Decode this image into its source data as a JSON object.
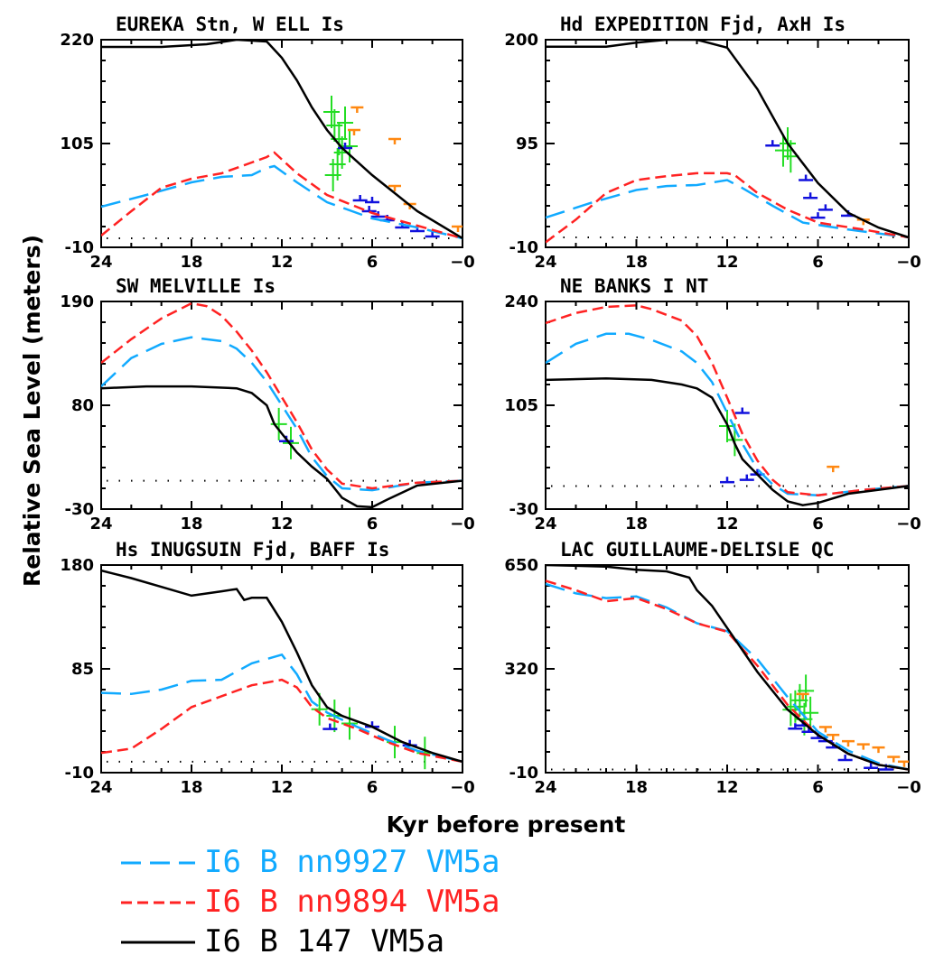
{
  "legend": [
    {
      "label": "I6 B nn9927 VM5a",
      "color": "#11aaff",
      "dash": "long"
    },
    {
      "label": "I6 B nn9894 VM5a",
      "color": "#ff2222",
      "dash": "short"
    },
    {
      "label": "I6 B 147 VM5a",
      "color": "#000000",
      "dash": "solid"
    }
  ],
  "marker_colors": {
    "green": "#22dd22",
    "blue": "#1111dd",
    "orange": "#ff8811"
  },
  "chart_data": [
    {
      "type": "line",
      "title": "EUREKA Stn, W ELL Is",
      "xlabel": "Kyr before present",
      "ylabel": "Relative Sea Level (meters)",
      "xlim": [
        24,
        0
      ],
      "ylim": [
        -10,
        220
      ],
      "xticks": [
        "24",
        "18",
        "12",
        "6",
        "−0"
      ],
      "yticks": [
        "-10",
        "105",
        "220"
      ],
      "series": [
        {
          "name": "I6 B nn9927 VM5a",
          "x": [
            24,
            21,
            18,
            16,
            14,
            13,
            12.5,
            11,
            9,
            6,
            3,
            0
          ],
          "y": [
            35,
            48,
            62,
            68,
            70,
            78,
            80,
            62,
            40,
            22,
            12,
            0
          ]
        },
        {
          "name": "I6 B nn9894 VM5a",
          "x": [
            24,
            22,
            20,
            18,
            16,
            14,
            13,
            12.5,
            11,
            9,
            6,
            3,
            0
          ],
          "y": [
            3,
            30,
            56,
            66,
            72,
            84,
            90,
            95,
            72,
            48,
            28,
            14,
            0
          ]
        },
        {
          "name": "I6 B 147 VM5a",
          "x": [
            24,
            20,
            17,
            15,
            13,
            12,
            11,
            10,
            9,
            8,
            6,
            3,
            0
          ],
          "y": [
            212,
            212,
            215,
            220,
            218,
            200,
            175,
            145,
            120,
            100,
            70,
            30,
            0
          ]
        }
      ],
      "observations": [
        {
          "kind": "green",
          "x": 8.7,
          "y": 140
        },
        {
          "kind": "green",
          "x": 8.5,
          "y": 125
        },
        {
          "kind": "green",
          "x": 8.2,
          "y": 110
        },
        {
          "kind": "green",
          "x": 8.0,
          "y": 95
        },
        {
          "kind": "green",
          "x": 8.6,
          "y": 70
        },
        {
          "kind": "green",
          "x": 7.8,
          "y": 128
        },
        {
          "kind": "green",
          "x": 7.5,
          "y": 102
        },
        {
          "kind": "green",
          "x": 8.3,
          "y": 82
        },
        {
          "kind": "blue",
          "x": 7.8,
          "y": 100
        },
        {
          "kind": "blue",
          "x": 6.8,
          "y": 42
        },
        {
          "kind": "blue",
          "x": 6.0,
          "y": 40
        },
        {
          "kind": "blue",
          "x": 6.2,
          "y": 30
        },
        {
          "kind": "blue",
          "x": 5.6,
          "y": 24
        },
        {
          "kind": "blue",
          "x": 5.0,
          "y": 20
        },
        {
          "kind": "blue",
          "x": 4.0,
          "y": 12
        },
        {
          "kind": "blue",
          "x": 3.0,
          "y": 8
        },
        {
          "kind": "blue",
          "x": 2.0,
          "y": 2
        },
        {
          "kind": "orange",
          "x": 7.0,
          "y": 145
        },
        {
          "kind": "orange",
          "x": 7.2,
          "y": 120
        },
        {
          "kind": "orange",
          "x": 4.5,
          "y": 110
        },
        {
          "kind": "orange",
          "x": 4.5,
          "y": 58
        },
        {
          "kind": "orange",
          "x": 3.5,
          "y": 38
        },
        {
          "kind": "orange",
          "x": 0.3,
          "y": 13
        }
      ]
    },
    {
      "type": "line",
      "title": "Hd EXPEDITION Fjd, AxH Is",
      "xlabel": "Kyr before present",
      "ylabel": "Relative Sea Level (meters)",
      "xlim": [
        24,
        0
      ],
      "ylim": [
        -10,
        200
      ],
      "xticks": [
        "24",
        "18",
        "12",
        "6",
        "−0"
      ],
      "yticks": [
        "-10",
        "95",
        "200"
      ],
      "series": [
        {
          "name": "I6 B nn9927 VM5a",
          "x": [
            24,
            21,
            18,
            16,
            14,
            12,
            11,
            9,
            7,
            4,
            0
          ],
          "y": [
            20,
            35,
            48,
            52,
            53,
            58,
            50,
            32,
            15,
            8,
            0
          ]
        },
        {
          "name": "I6 B nn9894 VM5a",
          "x": [
            24,
            22,
            20,
            18,
            16,
            14,
            12,
            11.5,
            10,
            8,
            6,
            3,
            0
          ],
          "y": [
            -5,
            18,
            45,
            58,
            62,
            65,
            65,
            63,
            45,
            28,
            15,
            8,
            0
          ]
        },
        {
          "name": "I6 B 147 VM5a",
          "x": [
            24,
            20,
            18,
            16,
            14,
            12,
            10,
            8,
            6,
            4,
            2,
            0
          ],
          "y": [
            193,
            193,
            197,
            200,
            200,
            192,
            150,
            95,
            55,
            25,
            10,
            0
          ]
        }
      ],
      "observations": [
        {
          "kind": "green",
          "x": 8.0,
          "y": 95
        },
        {
          "kind": "green",
          "x": 8.3,
          "y": 88
        },
        {
          "kind": "green",
          "x": 7.8,
          "y": 82
        },
        {
          "kind": "blue",
          "x": 9.0,
          "y": 93
        },
        {
          "kind": "blue",
          "x": 6.8,
          "y": 58
        },
        {
          "kind": "blue",
          "x": 6.5,
          "y": 40
        },
        {
          "kind": "blue",
          "x": 5.5,
          "y": 28
        },
        {
          "kind": "blue",
          "x": 4.0,
          "y": 22
        },
        {
          "kind": "blue",
          "x": 6.0,
          "y": 20
        },
        {
          "kind": "orange",
          "x": 3.0,
          "y": 18
        }
      ]
    },
    {
      "type": "line",
      "title": "SW MELVILLE Is",
      "xlabel": "Kyr before present",
      "ylabel": "Relative Sea Level (meters)",
      "xlim": [
        24,
        0
      ],
      "ylim": [
        -30,
        190
      ],
      "xticks": [
        "24",
        "18",
        "12",
        "6",
        "−0"
      ],
      "yticks": [
        "-30",
        "80",
        "190"
      ],
      "series": [
        {
          "name": "I6 B nn9927 VM5a",
          "x": [
            24,
            22,
            20,
            18,
            16,
            15,
            14,
            13,
            11,
            10,
            9,
            8,
            6,
            3,
            0
          ],
          "y": [
            100,
            130,
            145,
            152,
            148,
            140,
            125,
            105,
            55,
            25,
            5,
            -8,
            -10,
            -2,
            0
          ]
        },
        {
          "name": "I6 B nn9894 VM5a",
          "x": [
            24,
            22,
            20,
            18,
            17,
            16,
            15,
            14,
            13,
            11,
            10,
            9,
            8,
            6,
            3,
            0
          ],
          "y": [
            125,
            150,
            172,
            188,
            185,
            175,
            158,
            138,
            115,
            62,
            33,
            12,
            -3,
            -8,
            -2,
            0
          ]
        },
        {
          "name": "I6 B 147 VM5a",
          "x": [
            24,
            21,
            18,
            15,
            14,
            13,
            12.5,
            12,
            11,
            10,
            9,
            8,
            7,
            6,
            5,
            3,
            0
          ],
          "y": [
            98,
            100,
            100,
            98,
            93,
            80,
            60,
            50,
            30,
            15,
            2,
            -18,
            -27,
            -28,
            -20,
            -5,
            0
          ]
        }
      ],
      "observations": [
        {
          "kind": "green",
          "x": 12.2,
          "y": 60
        },
        {
          "kind": "green",
          "x": 11.4,
          "y": 40
        },
        {
          "kind": "blue",
          "x": 11.7,
          "y": 42
        }
      ],
      "zero_line": 0
    },
    {
      "type": "line",
      "title": "NE BANKS I NT",
      "xlabel": "Kyr before present",
      "ylabel": "Relative Sea Level (meters)",
      "xlim": [
        24,
        0
      ],
      "ylim": [
        -30,
        240
      ],
      "xticks": [
        "24",
        "18",
        "12",
        "6",
        "−0"
      ],
      "yticks": [
        "-30",
        "105",
        "240"
      ],
      "series": [
        {
          "name": "I6 B nn9927 VM5a",
          "x": [
            24,
            22,
            20,
            18.5,
            17,
            15,
            14,
            13,
            12,
            11,
            10,
            9,
            8,
            6,
            3,
            0
          ],
          "y": [
            160,
            185,
            198,
            198,
            190,
            175,
            160,
            135,
            95,
            55,
            22,
            2,
            -10,
            -12,
            -5,
            0
          ]
        },
        {
          "name": "I6 B nn9894 VM5a",
          "x": [
            24,
            22,
            20,
            18,
            17,
            15,
            14,
            13,
            12,
            11,
            10,
            9,
            8,
            6,
            3,
            0
          ],
          "y": [
            212,
            225,
            233,
            235,
            230,
            215,
            195,
            160,
            115,
            68,
            33,
            8,
            -8,
            -12,
            -5,
            0
          ]
        },
        {
          "name": "I6 B 147 VM5a",
          "x": [
            24,
            20,
            17,
            15,
            14,
            13,
            12,
            11.5,
            11,
            10,
            9,
            8,
            7,
            6,
            4,
            0
          ],
          "y": [
            138,
            140,
            138,
            132,
            127,
            115,
            80,
            55,
            35,
            15,
            -5,
            -20,
            -25,
            -22,
            -10,
            0
          ]
        }
      ],
      "observations": [
        {
          "kind": "green",
          "x": 12.0,
          "y": 78
        },
        {
          "kind": "green",
          "x": 11.5,
          "y": 60
        },
        {
          "kind": "blue",
          "x": 11.0,
          "y": 95
        },
        {
          "kind": "blue",
          "x": 12.0,
          "y": 5
        },
        {
          "kind": "blue",
          "x": 10.7,
          "y": 8
        },
        {
          "kind": "blue",
          "x": 10.0,
          "y": 15
        },
        {
          "kind": "orange",
          "x": 5.0,
          "y": 25
        }
      ],
      "zero_line": 0
    },
    {
      "type": "line",
      "title": "Hs INUGSUIN Fjd, BAFF Is",
      "xlabel": "Kyr before present",
      "ylabel": "Relative Sea Level (meters)",
      "xlim": [
        24,
        0
      ],
      "ylim": [
        -10,
        180
      ],
      "xticks": [
        "24",
        "18",
        "12",
        "6",
        "−0"
      ],
      "yticks": [
        "-10",
        "85",
        "180"
      ],
      "series": [
        {
          "name": "I6 B nn9927 VM5a",
          "x": [
            24,
            22,
            20,
            18,
            16,
            14,
            12,
            11,
            10,
            9,
            7,
            5,
            3,
            0
          ],
          "y": [
            63,
            62,
            66,
            74,
            75,
            90,
            98,
            80,
            55,
            45,
            32,
            20,
            10,
            0
          ]
        },
        {
          "name": "I6 B nn9894 VM5a",
          "x": [
            24,
            22,
            20,
            18,
            16,
            14,
            12,
            11,
            10,
            9,
            7,
            5,
            3,
            0
          ],
          "y": [
            8,
            12,
            30,
            50,
            60,
            70,
            75,
            68,
            50,
            40,
            30,
            18,
            8,
            0
          ]
        },
        {
          "name": "I6 B 147 VM5a",
          "x": [
            24,
            22,
            20,
            18,
            16,
            15,
            14.5,
            14,
            13,
            12,
            11,
            10,
            9,
            8,
            6,
            4,
            2,
            0
          ],
          "y": [
            175,
            168,
            160,
            152,
            156,
            158,
            148,
            150,
            150,
            128,
            100,
            70,
            50,
            42,
            32,
            18,
            8,
            0
          ]
        }
      ],
      "observations": [
        {
          "kind": "green",
          "x": 9.5,
          "y": 48
        },
        {
          "kind": "green",
          "x": 8.5,
          "y": 42
        },
        {
          "kind": "green",
          "x": 7.5,
          "y": 35
        },
        {
          "kind": "green",
          "x": 4.5,
          "y": 18
        },
        {
          "kind": "green",
          "x": 2.5,
          "y": 8
        },
        {
          "kind": "blue",
          "x": 8.8,
          "y": 30
        },
        {
          "kind": "blue",
          "x": 6.0,
          "y": 32
        },
        {
          "kind": "blue",
          "x": 3.5,
          "y": 15
        }
      ]
    },
    {
      "type": "line",
      "title": "LAC GUILLAUME-DELISLE QC",
      "xlabel": "Kyr before present",
      "ylabel": "Relative Sea Level (meters)",
      "xlim": [
        24,
        0
      ],
      "ylim": [
        -10,
        650
      ],
      "xticks": [
        "24",
        "18",
        "12",
        "6",
        "−0"
      ],
      "yticks": [
        "-10",
        "320",
        "650"
      ],
      "series": [
        {
          "name": "I6 B nn9927 VM5a",
          "x": [
            24,
            22,
            20,
            18,
            16,
            14,
            12,
            10,
            8,
            6,
            4,
            2,
            0
          ],
          "y": [
            590,
            560,
            545,
            550,
            515,
            465,
            440,
            350,
            230,
            120,
            60,
            20,
            0
          ]
        },
        {
          "name": "I6 B nn9894 VM5a",
          "x": [
            24,
            22,
            20,
            18,
            16,
            14,
            12,
            10,
            8,
            6,
            4,
            2,
            0
          ],
          "y": [
            600,
            570,
            535,
            545,
            510,
            465,
            438,
            330,
            205,
            110,
            50,
            15,
            0
          ]
        },
        {
          "name": "I6 B 147 VM5a",
          "x": [
            24,
            20,
            18,
            16,
            14.5,
            14,
            13,
            12,
            10,
            8,
            6,
            4,
            2,
            0
          ],
          "y": [
            650,
            645,
            635,
            630,
            610,
            570,
            520,
            450,
            310,
            190,
            110,
            50,
            15,
            0
          ]
        }
      ],
      "observations": [
        {
          "kind": "green",
          "x": 7.2,
          "y": 220
        },
        {
          "kind": "green",
          "x": 7.5,
          "y": 200
        },
        {
          "kind": "green",
          "x": 6.8,
          "y": 250
        },
        {
          "kind": "green",
          "x": 6.5,
          "y": 180
        },
        {
          "kind": "green",
          "x": 6.9,
          "y": 160
        },
        {
          "kind": "green",
          "x": 7.8,
          "y": 190
        },
        {
          "kind": "blue",
          "x": 7.5,
          "y": 130
        },
        {
          "kind": "blue",
          "x": 7.0,
          "y": 140
        },
        {
          "kind": "blue",
          "x": 6.6,
          "y": 120
        },
        {
          "kind": "blue",
          "x": 6.0,
          "y": 100
        },
        {
          "kind": "blue",
          "x": 5.5,
          "y": 90
        },
        {
          "kind": "blue",
          "x": 5.0,
          "y": 70
        },
        {
          "kind": "blue",
          "x": 4.2,
          "y": 30
        },
        {
          "kind": "blue",
          "x": 2.5,
          "y": 5
        },
        {
          "kind": "blue",
          "x": 1.5,
          "y": 0
        },
        {
          "kind": "orange",
          "x": 7.0,
          "y": 240
        },
        {
          "kind": "orange",
          "x": 5.5,
          "y": 135
        },
        {
          "kind": "orange",
          "x": 5.0,
          "y": 110
        },
        {
          "kind": "orange",
          "x": 4.0,
          "y": 90
        },
        {
          "kind": "orange",
          "x": 3.0,
          "y": 80
        },
        {
          "kind": "orange",
          "x": 2.0,
          "y": 70
        },
        {
          "kind": "orange",
          "x": 1.0,
          "y": 40
        },
        {
          "kind": "orange",
          "x": 0.3,
          "y": 25
        }
      ]
    }
  ]
}
